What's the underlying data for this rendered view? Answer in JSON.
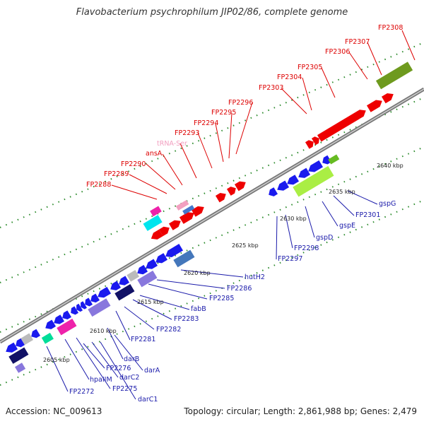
{
  "title": "Flavobacterium psychrophilum JIP02/86, complete genome",
  "footer": {
    "accession": "Accession: NC_009613",
    "summary": "Topology: circular; Length: 2,861,988 bp; Genes: 2,479"
  },
  "colors": {
    "forward_cds": "#ee0000",
    "reverse_cds": "#1a1aee",
    "forward_label": "#dd0000",
    "reverse_label": "#1a1aaa",
    "trna": "#f2a0c0",
    "backbone": "#999999",
    "gc_skew_tick": "#1a8a1a"
  },
  "scale_labels": [
    "2605 kbp",
    "2610 kbp",
    "2615 kbp",
    "2620 kbp",
    "2625 kbp",
    "2630 kbp",
    "2635 kbp",
    "2640 kbp"
  ],
  "forward_labels": [
    "FP2288",
    "FP2289",
    "FP2290",
    "ansA",
    "tRNA-Ser",
    "FP2293",
    "FP2294",
    "FP2295",
    "FP2296",
    "FP2303",
    "FP2304",
    "FP2305",
    "FP2306",
    "FP2307",
    "FP2308"
  ],
  "reverse_labels": [
    "hutH2",
    "FP2286",
    "FP2285",
    "fabB",
    "FP2283",
    "FP2282",
    "FP2281",
    "darA",
    "darB",
    "darC2",
    "FP2276",
    "darC1",
    "FP2275",
    "hpaIIM",
    "FP2272",
    "gspG",
    "FP2301",
    "gspE",
    "gspD",
    "FP2298",
    "FP2297"
  ]
}
